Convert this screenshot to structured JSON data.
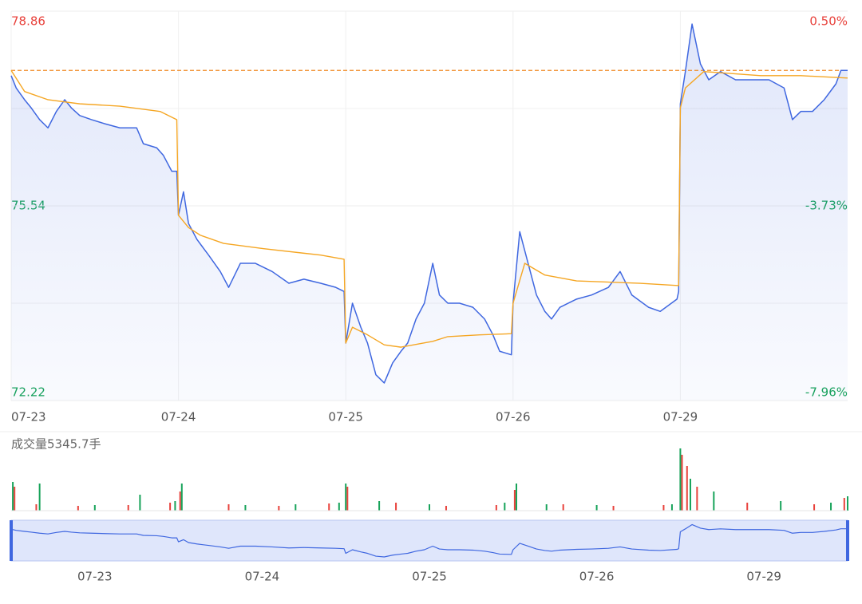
{
  "chart_data": {
    "type": "line",
    "xlim": [
      0,
      5
    ],
    "xticks": [
      {
        "value": 0,
        "label": "07-23"
      },
      {
        "value": 1,
        "label": "07-24"
      },
      {
        "value": 2,
        "label": "07-25"
      },
      {
        "value": 3,
        "label": "07-26"
      },
      {
        "value": 4,
        "label": "07-29"
      }
    ],
    "ylim": [
      72.22,
      78.86
    ],
    "yticks": [
      78.86,
      75.54,
      72.22
    ],
    "y2lim": [
      -7.96,
      0.5
    ],
    "y2ticks": [
      {
        "value": 0.5,
        "label": "0.50%"
      },
      {
        "value": -3.73,
        "label": "-3.73%"
      },
      {
        "value": -7.96,
        "label": "-7.96%"
      }
    ],
    "up_color": "#e8413b",
    "down_color": "#17a35a",
    "grid": true,
    "last_price_line": 77.85,
    "series": [
      {
        "color": "#3f67e0",
        "x": [
          0,
          0.03,
          0.08,
          0.12,
          0.17,
          0.22,
          0.27,
          0.32,
          0.36,
          0.41,
          0.48,
          0.56,
          0.65,
          0.75,
          0.79,
          0.87,
          0.91,
          0.96,
          0.99,
          1.0,
          1.03,
          1.06,
          1.11,
          1.18,
          1.25,
          1.3,
          1.37,
          1.46,
          1.56,
          1.66,
          1.75,
          1.85,
          1.94,
          1.99,
          2.0,
          2.04,
          2.09,
          2.13,
          2.18,
          2.23,
          2.28,
          2.33,
          2.37,
          2.42,
          2.47,
          2.52,
          2.56,
          2.61,
          2.68,
          2.76,
          2.83,
          2.88,
          2.92,
          2.99,
          3.0,
          3.04,
          3.09,
          3.14,
          3.19,
          3.23,
          3.28,
          3.38,
          3.47,
          3.57,
          3.64,
          3.71,
          3.81,
          3.88,
          3.98,
          3.99,
          4.0,
          4.03,
          4.07,
          4.12,
          4.17,
          4.24,
          4.33,
          4.43,
          4.53,
          4.62,
          4.67,
          4.72,
          4.79,
          4.86,
          4.93,
          4.96,
          5
        ],
        "values": [
          77.76,
          77.55,
          77.35,
          77.21,
          77.01,
          76.87,
          77.15,
          77.35,
          77.21,
          77.08,
          77.01,
          76.94,
          76.87,
          76.87,
          76.6,
          76.53,
          76.4,
          76.13,
          76.13,
          75.38,
          75.78,
          75.24,
          74.97,
          74.7,
          74.42,
          74.15,
          74.56,
          74.56,
          74.42,
          74.22,
          74.29,
          74.22,
          74.15,
          74.08,
          73.2,
          73.88,
          73.47,
          73.2,
          72.66,
          72.52,
          72.86,
          73.06,
          73.2,
          73.61,
          73.88,
          74.56,
          74.02,
          73.88,
          73.88,
          73.81,
          73.61,
          73.34,
          73.06,
          73.0,
          73.88,
          75.1,
          74.56,
          74.02,
          73.74,
          73.61,
          73.81,
          73.95,
          74.02,
          74.15,
          74.42,
          74.02,
          73.81,
          73.74,
          73.95,
          74.08,
          77.28,
          77.83,
          78.64,
          77.96,
          77.69,
          77.83,
          77.69,
          77.69,
          77.69,
          77.55,
          77.01,
          77.15,
          77.15,
          77.35,
          77.62,
          77.85,
          77.85
        ]
      },
      {
        "color": "#f5a623",
        "x": [
          0,
          0.08,
          0.22,
          0.41,
          0.65,
          0.89,
          0.99,
          1.0,
          1.06,
          1.13,
          1.27,
          1.51,
          1.85,
          1.99,
          2.0,
          2.04,
          2.13,
          2.23,
          2.33,
          2.52,
          2.61,
          2.8,
          2.99,
          3.0,
          3.07,
          3.19,
          3.38,
          3.76,
          3.99,
          4.0,
          4.03,
          4.14,
          4.48,
          4.72,
          5
        ],
        "values": [
          77.85,
          77.49,
          77.35,
          77.28,
          77.24,
          77.15,
          77.01,
          75.38,
          75.17,
          75.04,
          74.9,
          74.81,
          74.7,
          74.63,
          73.2,
          73.47,
          73.34,
          73.17,
          73.13,
          73.23,
          73.31,
          73.34,
          73.36,
          73.88,
          74.56,
          74.36,
          74.26,
          74.22,
          74.18,
          77.21,
          77.55,
          77.83,
          77.76,
          77.76,
          77.72
        ]
      }
    ],
    "volume": {
      "label": "成交量5345.7手",
      "ylim": [
        0,
        4000
      ],
      "up": {
        "x": [
          0.02,
          0.15,
          0.4,
          0.7,
          0.95,
          1.01,
          1.3,
          1.6,
          1.9,
          2.01,
          2.3,
          2.6,
          2.9,
          3.01,
          3.3,
          3.6,
          3.9,
          4.01,
          4.04,
          4.1,
          4.4,
          4.8,
          4.98
        ],
        "values": [
          1500,
          400,
          300,
          350,
          500,
          1200,
          400,
          300,
          450,
          1500,
          500,
          300,
          350,
          1300,
          400,
          300,
          350,
          3500,
          2800,
          1500,
          500,
          400,
          800
        ]
      },
      "down": {
        "x": [
          0.01,
          0.17,
          0.5,
          0.77,
          0.98,
          1.02,
          1.4,
          1.7,
          1.96,
          2.0,
          2.2,
          2.5,
          2.95,
          3.02,
          3.2,
          3.5,
          3.95,
          4.0,
          4.06,
          4.2,
          4.6,
          4.9,
          5.0
        ],
        "values": [
          1800,
          1700,
          350,
          1000,
          600,
          1700,
          350,
          400,
          500,
          1700,
          600,
          400,
          500,
          1700,
          400,
          350,
          400,
          3900,
          2000,
          1200,
          600,
          500,
          900
        ]
      }
    }
  }
}
